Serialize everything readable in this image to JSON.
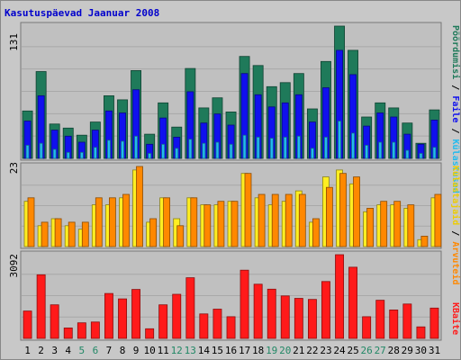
{
  "chart_data": [
    {
      "type": "bar",
      "panel": "top",
      "title": "Kasutuspäevad Jaanuar 2008",
      "ymax_label": "131",
      "categories": [
        "1",
        "2",
        "3",
        "4",
        "5",
        "6",
        "7",
        "8",
        "9",
        "10",
        "11",
        "12",
        "13",
        "14",
        "15",
        "16",
        "17",
        "18",
        "19",
        "20",
        "21",
        "22",
        "23",
        "24",
        "25",
        "26",
        "27",
        "28",
        "29",
        "30",
        "31"
      ],
      "weekend_days": [
        "5",
        "6",
        "12",
        "13",
        "19",
        "20",
        "26",
        "27"
      ],
      "ylim": [
        0,
        131
      ],
      "series": [
        {
          "name": "Pöördumisi",
          "color": "#1f7a5a",
          "values": [
            47,
            86,
            34,
            30,
            23,
            36,
            62,
            58,
            87,
            24,
            55,
            31,
            89,
            50,
            60,
            46,
            101,
            92,
            71,
            75,
            84,
            49,
            96,
            131,
            107,
            41,
            55,
            50,
            35,
            15,
            48
          ]
        },
        {
          "name": "Faile",
          "color": "#1010ee",
          "values": [
            37,
            62,
            28,
            22,
            16,
            28,
            47,
            45,
            68,
            14,
            40,
            21,
            66,
            35,
            44,
            33,
            84,
            63,
            51,
            55,
            63,
            36,
            70,
            107,
            83,
            32,
            45,
            41,
            24,
            14,
            38
          ]
        },
        {
          "name": "Külastused",
          "color": "#22bbee",
          "values": [
            13,
            15,
            9,
            6,
            6,
            11,
            18,
            17,
            22,
            5,
            14,
            10,
            19,
            15,
            16,
            14,
            23,
            21,
            20,
            21,
            22,
            10,
            21,
            37,
            25,
            13,
            16,
            16,
            8,
            5,
            11
          ]
        }
      ]
    },
    {
      "type": "bar",
      "panel": "middle",
      "ymax_label": "23",
      "categories": [
        "1",
        "2",
        "3",
        "4",
        "5",
        "6",
        "7",
        "8",
        "9",
        "10",
        "11",
        "12",
        "13",
        "14",
        "15",
        "16",
        "17",
        "18",
        "19",
        "20",
        "21",
        "22",
        "23",
        "24",
        "25",
        "26",
        "27",
        "28",
        "29",
        "30",
        "31"
      ],
      "ylim": [
        0,
        23
      ],
      "series": [
        {
          "name": "Külastajaid",
          "color": "#ffee22",
          "values": [
            13,
            6,
            8,
            6,
            5,
            12,
            12,
            14,
            22,
            7,
            14,
            8,
            14,
            12,
            12,
            13,
            21,
            14,
            12,
            13,
            16,
            7,
            20,
            22,
            18,
            10,
            12,
            12,
            11,
            2,
            14
          ]
        },
        {
          "name": "Arvuteid",
          "color": "#ff8800",
          "values": [
            14,
            7,
            8,
            7,
            7,
            14,
            14,
            15,
            23,
            8,
            14,
            6,
            14,
            12,
            13,
            13,
            21,
            15,
            15,
            15,
            15,
            8,
            17,
            21,
            20,
            11,
            13,
            13,
            12,
            3,
            15
          ]
        }
      ]
    },
    {
      "type": "bar",
      "panel": "bottom",
      "ymax_label": "3092",
      "categories": [
        "1",
        "2",
        "3",
        "4",
        "5",
        "6",
        "7",
        "8",
        "9",
        "10",
        "11",
        "12",
        "13",
        "14",
        "15",
        "16",
        "17",
        "18",
        "19",
        "20",
        "21",
        "22",
        "23",
        "24",
        "25",
        "26",
        "27",
        "28",
        "29",
        "30",
        "31"
      ],
      "ylim": [
        0,
        3092
      ],
      "series": [
        {
          "name": "KBaite",
          "color": "#ff1a1a",
          "values": [
            1010,
            2350,
            1240,
            385,
            575,
            605,
            1660,
            1460,
            1810,
            355,
            1240,
            1630,
            2240,
            905,
            1080,
            800,
            2520,
            2000,
            1820,
            1570,
            1480,
            1440,
            2100,
            3092,
            2630,
            800,
            1410,
            1050,
            1270,
            425,
            1120
          ]
        }
      ]
    }
  ],
  "right_legend": {
    "top": [
      "Pöördumisi",
      "/",
      "Faile",
      "/",
      "Külastused"
    ],
    "middle": [
      "Külastajaid",
      "/",
      "Arvuteid"
    ],
    "bottom": [
      "KBaite"
    ]
  },
  "colors": {
    "title": "#0000cc",
    "frame_bg": "#c8c8c8",
    "plot_bg": "#c0c0c0",
    "grid": "#a8a8a8",
    "weekday_label": "#000000",
    "weekend_label": "#228866"
  }
}
